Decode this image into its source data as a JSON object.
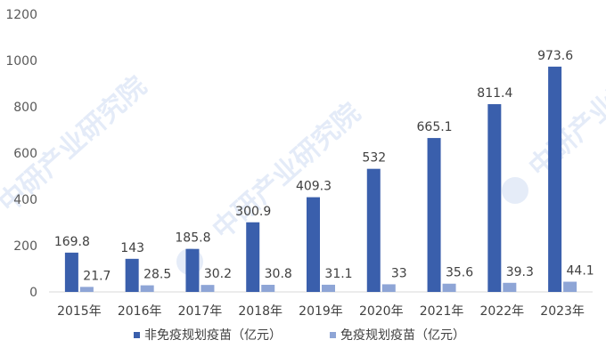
{
  "chart_data": {
    "type": "bar",
    "categories": [
      "2015年",
      "2016年",
      "2017年",
      "2018年",
      "2019年",
      "2020年",
      "2021年",
      "2022年",
      "2023年"
    ],
    "series": [
      {
        "name": "非免疫规划疫苗（亿元）",
        "color": "#3a5fac",
        "values": [
          169.8,
          143,
          185.8,
          300.9,
          409.3,
          532,
          665.1,
          811.4,
          973.6
        ],
        "labels": [
          "169.8",
          "143",
          "185.8",
          "300.9",
          "409.3",
          "532",
          "665.1",
          "811.4",
          "973.6"
        ]
      },
      {
        "name": "免疫规划疫苗（亿元）",
        "color": "#8ea5d6",
        "values": [
          21.7,
          28.5,
          30.2,
          30.8,
          31.1,
          33,
          35.6,
          39.3,
          44.1
        ],
        "labels": [
          "21.7",
          "28.5",
          "30.2",
          "30.8",
          "31.1",
          "33",
          "35.6",
          "39.3",
          "44.1"
        ]
      }
    ],
    "ylim": [
      0,
      1200
    ],
    "yticks": [
      0,
      200,
      400,
      600,
      800,
      1000,
      1200
    ],
    "grid": false,
    "legend_position": "bottom"
  },
  "watermark": {
    "text": "中研产业研究院",
    "color": "#5b8bd6"
  }
}
